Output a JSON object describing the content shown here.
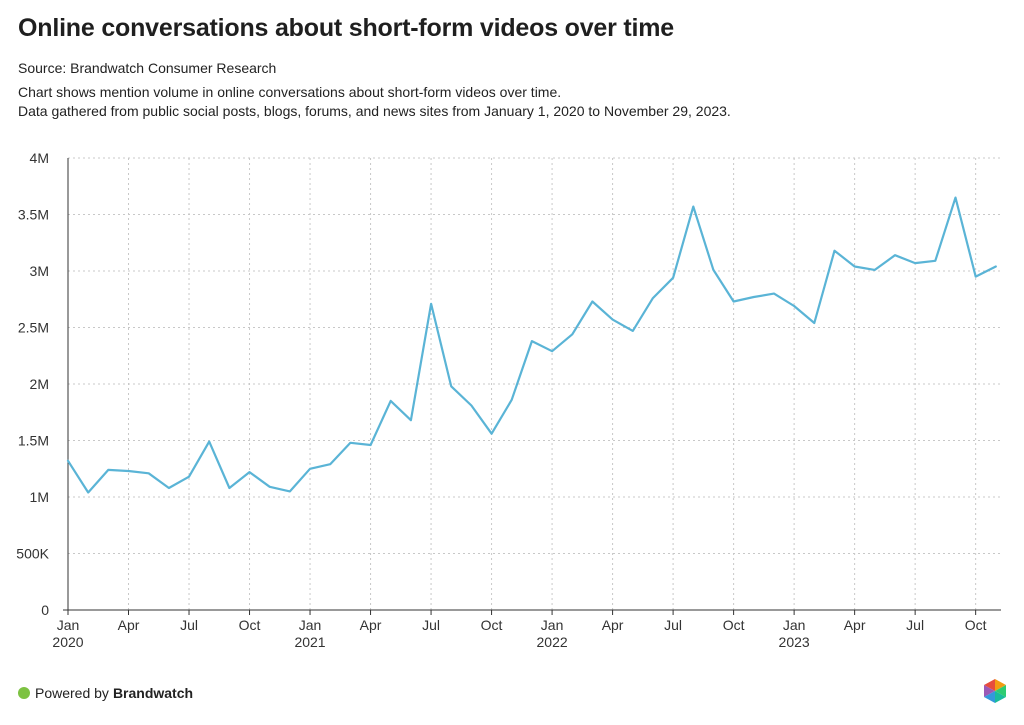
{
  "header": {
    "title": "Online conversations about short-form videos over time",
    "source": "Source: Brandwatch Consumer Research",
    "description_line1": "Chart shows mention volume in online conversations about short-form videos over time.",
    "description_line2": "Data gathered from public social posts, blogs, forums, and news sites from January 1, 2020 to November 29, 2023."
  },
  "footer": {
    "powered_by": "Powered by",
    "brand": "Brandwatch"
  },
  "colors": {
    "line": "#5ab4d6",
    "grid": "#c8c8c8",
    "accent_dot": "#7dc242"
  },
  "icons": {
    "footer_dot": "green-dot-icon",
    "logo": "brandwatch-hexagon-logo"
  },
  "chart_data": {
    "type": "line",
    "title": "Online conversations about short-form videos over time",
    "xlabel": "",
    "ylabel": "",
    "ylim": [
      0,
      4000000
    ],
    "grid": true,
    "legend": "none",
    "y_ticks": [
      {
        "value": 0,
        "label": "0"
      },
      {
        "value": 500000,
        "label": "500K"
      },
      {
        "value": 1000000,
        "label": "1M"
      },
      {
        "value": 1500000,
        "label": "1.5M"
      },
      {
        "value": 2000000,
        "label": "2M"
      },
      {
        "value": 2500000,
        "label": "2.5M"
      },
      {
        "value": 3000000,
        "label": "3M"
      },
      {
        "value": 3500000,
        "label": "3.5M"
      },
      {
        "value": 4000000,
        "label": "4M"
      }
    ],
    "x_ticks": [
      {
        "month": "2020-01",
        "label": "Jan",
        "year": "2020"
      },
      {
        "month": "2020-04",
        "label": "Apr"
      },
      {
        "month": "2020-07",
        "label": "Jul"
      },
      {
        "month": "2020-10",
        "label": "Oct"
      },
      {
        "month": "2021-01",
        "label": "Jan",
        "year": "2021"
      },
      {
        "month": "2021-04",
        "label": "Apr"
      },
      {
        "month": "2021-07",
        "label": "Jul"
      },
      {
        "month": "2021-10",
        "label": "Oct"
      },
      {
        "month": "2022-01",
        "label": "Jan",
        "year": "2022"
      },
      {
        "month": "2022-04",
        "label": "Apr"
      },
      {
        "month": "2022-07",
        "label": "Jul"
      },
      {
        "month": "2022-10",
        "label": "Oct"
      },
      {
        "month": "2023-01",
        "label": "Jan",
        "year": "2023"
      },
      {
        "month": "2023-04",
        "label": "Apr"
      },
      {
        "month": "2023-07",
        "label": "Jul"
      },
      {
        "month": "2023-10",
        "label": "Oct"
      }
    ],
    "x": [
      "2020-01",
      "2020-02",
      "2020-03",
      "2020-04",
      "2020-05",
      "2020-06",
      "2020-07",
      "2020-08",
      "2020-09",
      "2020-10",
      "2020-11",
      "2020-12",
      "2021-01",
      "2021-02",
      "2021-03",
      "2021-04",
      "2021-05",
      "2021-06",
      "2021-07",
      "2021-08",
      "2021-09",
      "2021-10",
      "2021-11",
      "2021-12",
      "2022-01",
      "2022-02",
      "2022-03",
      "2022-04",
      "2022-05",
      "2022-06",
      "2022-07",
      "2022-08",
      "2022-09",
      "2022-10",
      "2022-11",
      "2022-12",
      "2023-01",
      "2023-02",
      "2023-03",
      "2023-04",
      "2023-05",
      "2023-06",
      "2023-07",
      "2023-08",
      "2023-09",
      "2023-10",
      "2023-11"
    ],
    "series": [
      {
        "values": [
          1320000,
          1040000,
          1240000,
          1230000,
          1210000,
          1080000,
          1180000,
          1490000,
          1080000,
          1220000,
          1090000,
          1050000,
          1250000,
          1290000,
          1480000,
          1460000,
          1850000,
          1680000,
          2710000,
          1980000,
          1810000,
          1560000,
          1860000,
          2380000,
          2290000,
          2440000,
          2730000,
          2570000,
          2470000,
          2760000,
          2940000,
          3570000,
          3010000,
          2730000,
          2770000,
          2800000,
          2690000,
          2540000,
          3180000,
          3040000,
          3010000,
          3140000,
          3070000,
          3090000,
          3650000,
          2950000,
          3040000
        ]
      }
    ]
  }
}
